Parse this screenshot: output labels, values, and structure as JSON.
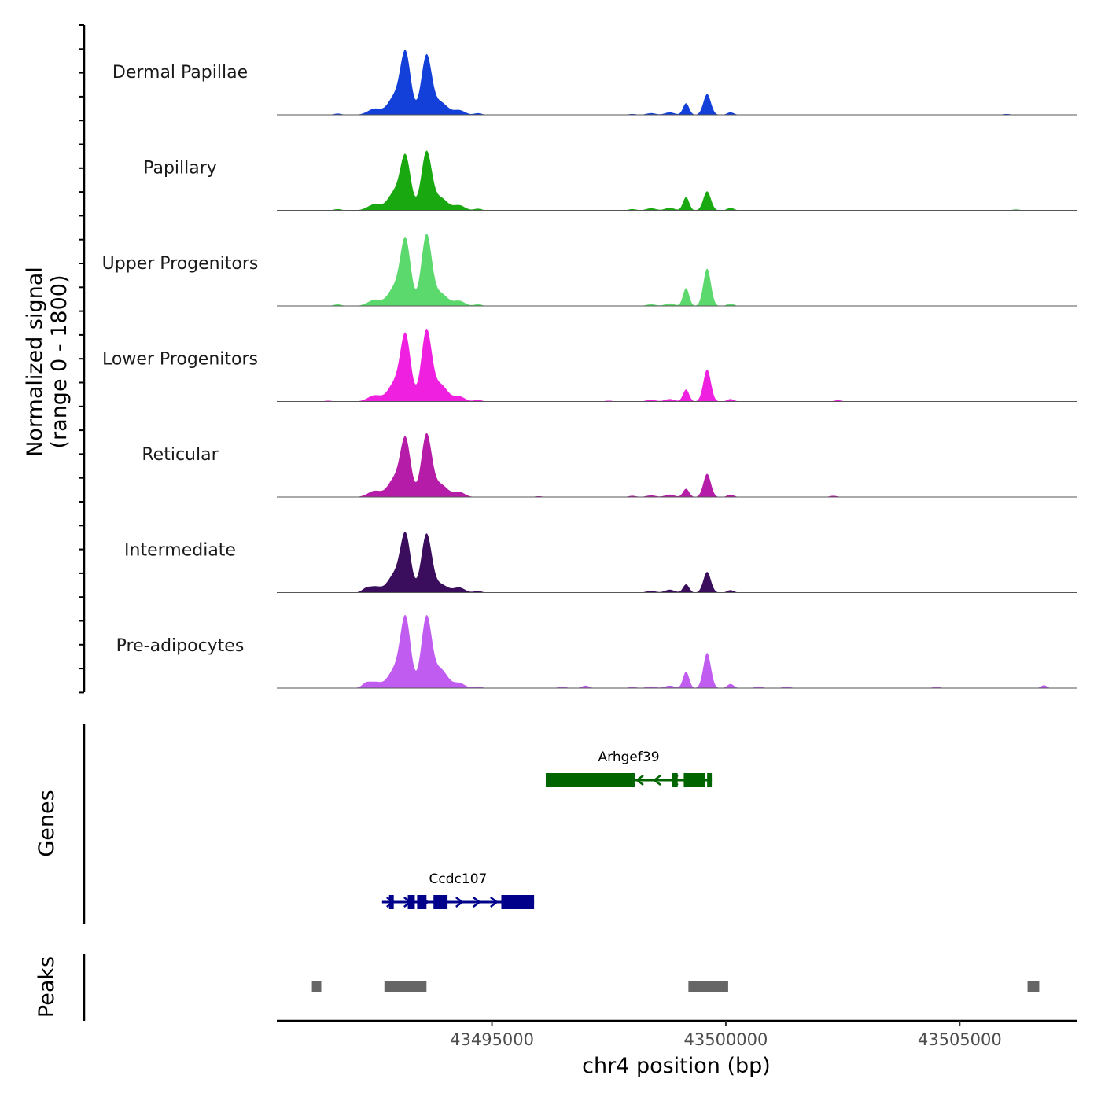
{
  "chart_data": {
    "type": "area",
    "title": "",
    "xlabel": "chr4 position (bp)",
    "ylabel_line1": "Normalized signal",
    "ylabel_line2": "(range 0 - 1800)",
    "xlim": [
      43490400,
      43507500
    ],
    "x_ticks": [
      43495000,
      43500000,
      43505000
    ],
    "x_tick_labels": [
      "43495000",
      "43500000",
      "43505000"
    ],
    "ylim": [
      0,
      1800
    ],
    "series": [
      {
        "name": "Dermal Papillae",
        "color": "#1240d8",
        "peaks": [
          {
            "x": 43491700,
            "h": 30,
            "w": 80
          },
          {
            "x": 43492500,
            "h": 150,
            "w": 150
          },
          {
            "x": 43492900,
            "h": 400,
            "w": 130
          },
          {
            "x": 43493150,
            "h": 1500,
            "w": 110
          },
          {
            "x": 43493600,
            "h": 1420,
            "w": 110
          },
          {
            "x": 43493900,
            "h": 300,
            "w": 150
          },
          {
            "x": 43494300,
            "h": 110,
            "w": 120
          },
          {
            "x": 43494700,
            "h": 40,
            "w": 80
          },
          {
            "x": 43498000,
            "h": 20,
            "w": 80
          },
          {
            "x": 43498400,
            "h": 40,
            "w": 100
          },
          {
            "x": 43498800,
            "h": 60,
            "w": 100
          },
          {
            "x": 43499150,
            "h": 280,
            "w": 65
          },
          {
            "x": 43499600,
            "h": 500,
            "w": 80
          },
          {
            "x": 43500100,
            "h": 60,
            "w": 70
          },
          {
            "x": 43506000,
            "h": 20,
            "w": 80
          }
        ]
      },
      {
        "name": "Papillary",
        "color": "#1aa810",
        "peaks": [
          {
            "x": 43491700,
            "h": 30,
            "w": 80
          },
          {
            "x": 43492500,
            "h": 150,
            "w": 150
          },
          {
            "x": 43492900,
            "h": 400,
            "w": 130
          },
          {
            "x": 43493150,
            "h": 1300,
            "w": 110
          },
          {
            "x": 43493600,
            "h": 1400,
            "w": 110
          },
          {
            "x": 43493900,
            "h": 300,
            "w": 150
          },
          {
            "x": 43494300,
            "h": 120,
            "w": 120
          },
          {
            "x": 43494700,
            "h": 40,
            "w": 80
          },
          {
            "x": 43498000,
            "h": 30,
            "w": 80
          },
          {
            "x": 43498400,
            "h": 50,
            "w": 100
          },
          {
            "x": 43498800,
            "h": 60,
            "w": 100
          },
          {
            "x": 43499150,
            "h": 320,
            "w": 65
          },
          {
            "x": 43499600,
            "h": 460,
            "w": 80
          },
          {
            "x": 43500100,
            "h": 60,
            "w": 70
          },
          {
            "x": 43506200,
            "h": 20,
            "w": 80
          }
        ]
      },
      {
        "name": "Upper Progenitors",
        "color": "#5cd96c",
        "peaks": [
          {
            "x": 43491700,
            "h": 40,
            "w": 80
          },
          {
            "x": 43492500,
            "h": 150,
            "w": 150
          },
          {
            "x": 43492900,
            "h": 400,
            "w": 130
          },
          {
            "x": 43493150,
            "h": 1600,
            "w": 110
          },
          {
            "x": 43493600,
            "h": 1700,
            "w": 110
          },
          {
            "x": 43493900,
            "h": 300,
            "w": 150
          },
          {
            "x": 43494300,
            "h": 120,
            "w": 120
          },
          {
            "x": 43494700,
            "h": 40,
            "w": 80
          },
          {
            "x": 43498400,
            "h": 40,
            "w": 100
          },
          {
            "x": 43498800,
            "h": 60,
            "w": 100
          },
          {
            "x": 43499150,
            "h": 430,
            "w": 65
          },
          {
            "x": 43499600,
            "h": 900,
            "w": 80
          },
          {
            "x": 43500100,
            "h": 60,
            "w": 70
          }
        ]
      },
      {
        "name": "Lower Progenitors",
        "color": "#f020e0",
        "peaks": [
          {
            "x": 43491500,
            "h": 20,
            "w": 80
          },
          {
            "x": 43492500,
            "h": 150,
            "w": 150
          },
          {
            "x": 43492900,
            "h": 400,
            "w": 130
          },
          {
            "x": 43493150,
            "h": 1600,
            "w": 110
          },
          {
            "x": 43493600,
            "h": 1700,
            "w": 110
          },
          {
            "x": 43493900,
            "h": 400,
            "w": 150
          },
          {
            "x": 43494300,
            "h": 120,
            "w": 120
          },
          {
            "x": 43494700,
            "h": 40,
            "w": 80
          },
          {
            "x": 43497500,
            "h": 20,
            "w": 80
          },
          {
            "x": 43498400,
            "h": 40,
            "w": 100
          },
          {
            "x": 43498800,
            "h": 60,
            "w": 100
          },
          {
            "x": 43499150,
            "h": 290,
            "w": 65
          },
          {
            "x": 43499600,
            "h": 770,
            "w": 80
          },
          {
            "x": 43500100,
            "h": 60,
            "w": 70
          },
          {
            "x": 43502400,
            "h": 30,
            "w": 80
          }
        ]
      },
      {
        "name": "Reticular",
        "color": "#b51ca8",
        "peaks": [
          {
            "x": 43492500,
            "h": 150,
            "w": 150
          },
          {
            "x": 43492900,
            "h": 400,
            "w": 130
          },
          {
            "x": 43493150,
            "h": 1400,
            "w": 110
          },
          {
            "x": 43493600,
            "h": 1500,
            "w": 110
          },
          {
            "x": 43493900,
            "h": 300,
            "w": 150
          },
          {
            "x": 43494300,
            "h": 120,
            "w": 120
          },
          {
            "x": 43496000,
            "h": 20,
            "w": 80
          },
          {
            "x": 43498000,
            "h": 30,
            "w": 80
          },
          {
            "x": 43498400,
            "h": 40,
            "w": 100
          },
          {
            "x": 43498800,
            "h": 60,
            "w": 100
          },
          {
            "x": 43499150,
            "h": 200,
            "w": 65
          },
          {
            "x": 43499600,
            "h": 560,
            "w": 80
          },
          {
            "x": 43500100,
            "h": 60,
            "w": 70
          },
          {
            "x": 43502300,
            "h": 30,
            "w": 80
          }
        ]
      },
      {
        "name": "Intermediate",
        "color": "#3a0e5c",
        "peaks": [
          {
            "x": 43492300,
            "h": 60,
            "w": 80
          },
          {
            "x": 43492500,
            "h": 150,
            "w": 150
          },
          {
            "x": 43492900,
            "h": 400,
            "w": 130
          },
          {
            "x": 43493150,
            "h": 1400,
            "w": 110
          },
          {
            "x": 43493600,
            "h": 1400,
            "w": 110
          },
          {
            "x": 43493900,
            "h": 200,
            "w": 150
          },
          {
            "x": 43494300,
            "h": 120,
            "w": 120
          },
          {
            "x": 43494700,
            "h": 40,
            "w": 80
          },
          {
            "x": 43498400,
            "h": 40,
            "w": 100
          },
          {
            "x": 43498800,
            "h": 70,
            "w": 100
          },
          {
            "x": 43499150,
            "h": 200,
            "w": 65
          },
          {
            "x": 43499600,
            "h": 500,
            "w": 80
          },
          {
            "x": 43500100,
            "h": 60,
            "w": 70
          }
        ]
      },
      {
        "name": "Pre-adipocytes",
        "color": "#c05cf0",
        "peaks": [
          {
            "x": 43492300,
            "h": 80,
            "w": 80
          },
          {
            "x": 43492500,
            "h": 150,
            "w": 150
          },
          {
            "x": 43492900,
            "h": 400,
            "w": 130
          },
          {
            "x": 43493150,
            "h": 1700,
            "w": 110
          },
          {
            "x": 43493600,
            "h": 1700,
            "w": 110
          },
          {
            "x": 43493900,
            "h": 450,
            "w": 150
          },
          {
            "x": 43494300,
            "h": 120,
            "w": 120
          },
          {
            "x": 43494700,
            "h": 40,
            "w": 80
          },
          {
            "x": 43496500,
            "h": 40,
            "w": 80
          },
          {
            "x": 43497000,
            "h": 60,
            "w": 80
          },
          {
            "x": 43498000,
            "h": 30,
            "w": 80
          },
          {
            "x": 43498400,
            "h": 40,
            "w": 100
          },
          {
            "x": 43498800,
            "h": 60,
            "w": 100
          },
          {
            "x": 43499150,
            "h": 400,
            "w": 65
          },
          {
            "x": 43499600,
            "h": 850,
            "w": 80
          },
          {
            "x": 43500100,
            "h": 100,
            "w": 70
          },
          {
            "x": 43500700,
            "h": 40,
            "w": 80
          },
          {
            "x": 43501300,
            "h": 40,
            "w": 80
          },
          {
            "x": 43504500,
            "h": 30,
            "w": 80
          },
          {
            "x": 43506800,
            "h": 70,
            "w": 60
          }
        ]
      }
    ],
    "genes": [
      {
        "name": "Arhgef39",
        "color": "#006400",
        "strand": "-",
        "start": 43496150,
        "end": 43499700,
        "row": 0,
        "exons": [
          [
            43496150,
            43498050
          ],
          [
            43498850,
            43498970
          ],
          [
            43499100,
            43499550
          ],
          [
            43499600,
            43499700
          ]
        ]
      },
      {
        "name": "Ccdc107",
        "color": "#00008b",
        "strand": "+",
        "start": 43492650,
        "end": 43495900,
        "row": 1,
        "exons": [
          [
            43492800,
            43492900
          ],
          [
            43493200,
            43493350
          ],
          [
            43493400,
            43493600
          ],
          [
            43493750,
            43494050
          ],
          [
            43495200,
            43495900
          ]
        ]
      }
    ],
    "peaks": [
      {
        "start": 43491150,
        "end": 43491350
      },
      {
        "start": 43492700,
        "end": 43493600
      },
      {
        "start": 43499200,
        "end": 43500050
      },
      {
        "start": 43506450,
        "end": 43506700
      }
    ],
    "genes_label": "Genes",
    "peaks_label": "Peaks"
  }
}
